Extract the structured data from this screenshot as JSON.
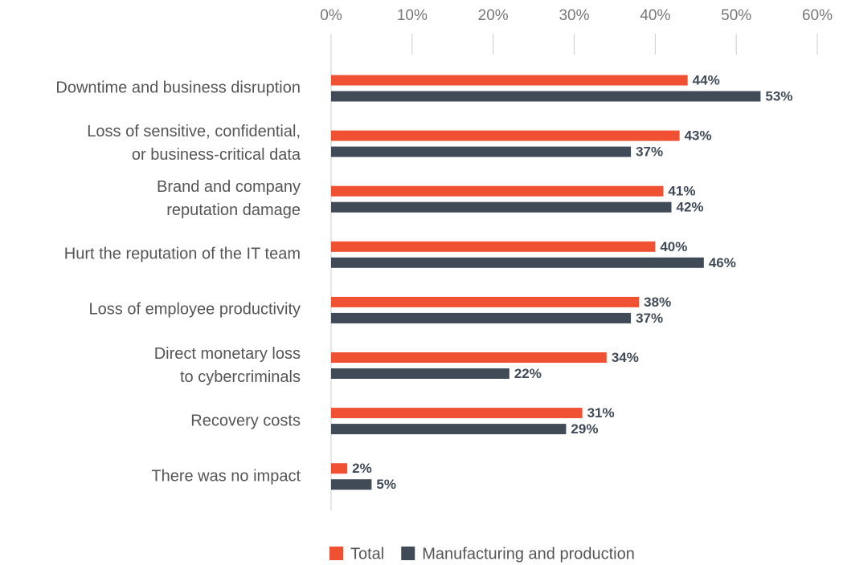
{
  "chart_data": {
    "type": "bar",
    "orientation": "horizontal",
    "categories": [
      "Downtime and business disruption",
      "Loss of sensitive, confidential,\nor business-critical data",
      "Brand and company\nreputation damage",
      "Hurt the reputation of the IT team",
      "Loss of employee productivity",
      "Direct monetary loss\nto cybercriminals",
      "Recovery costs",
      "There was no impact"
    ],
    "series": [
      {
        "name": "Total",
        "color": "#f05133",
        "values": [
          44,
          43,
          41,
          40,
          38,
          34,
          31,
          2
        ],
        "value_labels": [
          "44%",
          "43%",
          "41%",
          "40%",
          "38%",
          "34%",
          "31%",
          "2%"
        ]
      },
      {
        "name": "Manufacturing and production",
        "color": "#404b57",
        "values": [
          53,
          37,
          42,
          46,
          37,
          22,
          29,
          5
        ],
        "value_labels": [
          "53%",
          "37%",
          "42%",
          "46%",
          "37%",
          "22%",
          "29%",
          "5%"
        ]
      }
    ],
    "xlim": [
      0,
      60
    ],
    "xticks": [
      {
        "value": 0,
        "label": "0%"
      },
      {
        "value": 10,
        "label": "10%"
      },
      {
        "value": 20,
        "label": "20%"
      },
      {
        "value": 30,
        "label": "30%"
      },
      {
        "value": 40,
        "label": "40%"
      },
      {
        "value": 50,
        "label": "50%"
      },
      {
        "value": 60,
        "label": "60%"
      }
    ],
    "legend": "bottom"
  }
}
